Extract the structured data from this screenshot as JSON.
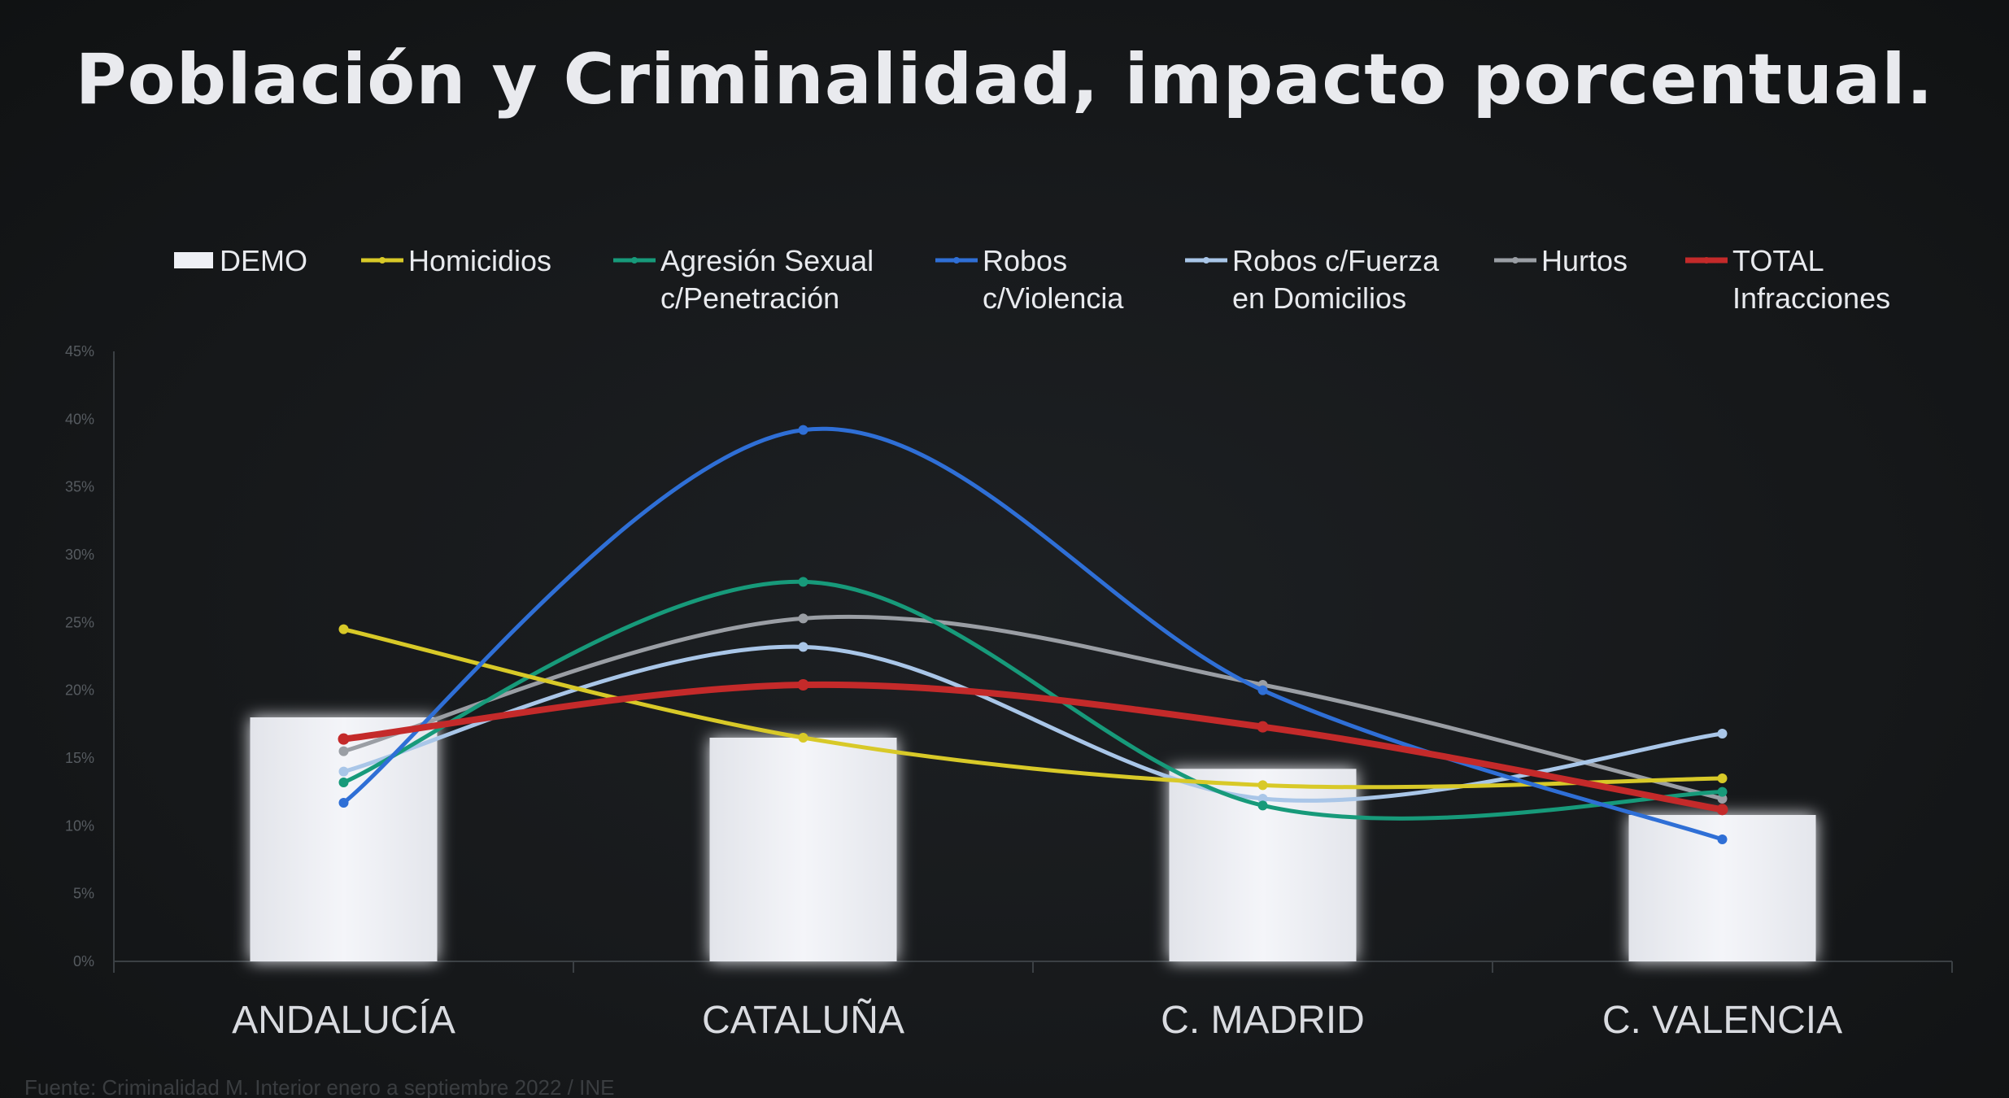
{
  "slide": {
    "title": "Población y Criminalidad, impacto porcentual.",
    "source_note": "Fuente: Criminalidad M. Interior enero a septiembre 2022 / INE"
  },
  "chart_data": {
    "type": "bar",
    "categories": [
      "ANDALUCÍA",
      "CATALUÑA",
      "C. MADRID",
      "C. VALENCIA"
    ],
    "ylim": [
      0,
      45
    ],
    "yticks": [
      "0%",
      "5%",
      "10%",
      "15%",
      "20%",
      "25%",
      "30%",
      "35%",
      "40%",
      "45%"
    ],
    "grid": false,
    "legend_position": "top",
    "bar_series": {
      "name": "DEMO",
      "color": "#eef0f5",
      "values": [
        18.0,
        16.5,
        14.2,
        10.8
      ]
    },
    "line_series": [
      {
        "name": "Homicidios",
        "color": "#d8c928",
        "values": [
          24.5,
          16.5,
          13.0,
          13.5
        ]
      },
      {
        "name": "Agresión Sexual\nc/Penetración",
        "color": "#179a7a",
        "values": [
          13.2,
          28.0,
          11.5,
          12.5
        ]
      },
      {
        "name": "Robos\nc/Violencia",
        "color": "#2f6fd6",
        "values": [
          11.7,
          39.2,
          20.0,
          9.0
        ]
      },
      {
        "name": "Robos c/Fuerza\nen Domicilios",
        "color": "#a9c6e8",
        "values": [
          14.0,
          23.2,
          12.0,
          16.8
        ]
      },
      {
        "name": "Hurtos",
        "color": "#9a9ea4",
        "values": [
          15.5,
          25.3,
          20.4,
          12.0
        ]
      },
      {
        "name": "TOTAL\nInfracciones",
        "color": "#c42a2a",
        "values": [
          16.4,
          20.4,
          17.3,
          11.2
        ]
      }
    ]
  }
}
